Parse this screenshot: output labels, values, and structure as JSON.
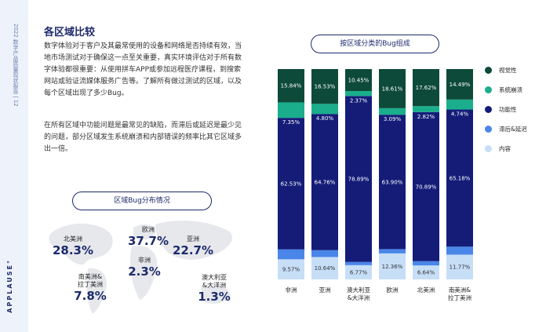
{
  "side": {
    "vertical_text": "2022 数字产品质量现状报告  |  12",
    "brand": "APPLAUSE°"
  },
  "heading": "各区域比较",
  "paragraphs": [
    "数字体验对于客户及其最常使用的设备和网络是否持续有效，当地市场测试对于确保这一点至关重要，真实环境评估对于所有数字体验都很重要：从使用拼车APP或参加远程医疗课程，到搜索网站或验证流媒体服务广告等。了解所有做过测试的区域，以及每个区域出现了多少Bug。",
    "在所有区域中功能问题是最常见的缺陷，而滞后或延迟是最少见的问题，部分区域发生系统崩溃和内部错误的频率比其它区域多出一倍。"
  ],
  "map": {
    "title": "区域Bug分布情况",
    "regions": [
      {
        "name": "北美洲",
        "value": "28.3%"
      },
      {
        "name": "欧洲",
        "value": "37.7%"
      },
      {
        "name": "亚洲",
        "value": "22.7%"
      },
      {
        "name": "非洲",
        "value": "2.3%"
      },
      {
        "name": "南美洲&\n拉丁美洲",
        "value": "7.8%"
      },
      {
        "name": "澳大利亚\n&大洋洲",
        "value": "1.3%"
      }
    ]
  },
  "chart_data": {
    "type": "bar",
    "stacked": true,
    "title": "按区域分类的Bug组成",
    "categories": [
      "非洲",
      "亚洲",
      "澳大利亚\n&大洋洲",
      "欧洲",
      "北美洲",
      "南美洲&\n拉丁美洲"
    ],
    "ylim": [
      0,
      100
    ],
    "legend_position": "right",
    "series": [
      {
        "name": "视觉性",
        "color": "#0d4a3a",
        "values": [
          15.84,
          16.53,
          10.45,
          18.61,
          17.62,
          14.49
        ]
      },
      {
        "name": "系统崩溃",
        "color": "#1aae8c",
        "values": [
          7.35,
          4.8,
          2.37,
          3.09,
          2.82,
          4.74
        ]
      },
      {
        "name": "功能性",
        "color": "#141c78",
        "values": [
          62.53,
          64.76,
          78.89,
          63.9,
          70.89,
          65.18
        ]
      },
      {
        "name": "滞后&延迟",
        "color": "#4a86e8",
        "values": [
          4.7,
          3.26,
          1.53,
          2.04,
          2.03,
          3.81
        ]
      },
      {
        "name": "内容",
        "color": "#c7def7",
        "values": [
          9.57,
          10.64,
          6.77,
          12.36,
          6.64,
          11.77
        ]
      }
    ]
  }
}
